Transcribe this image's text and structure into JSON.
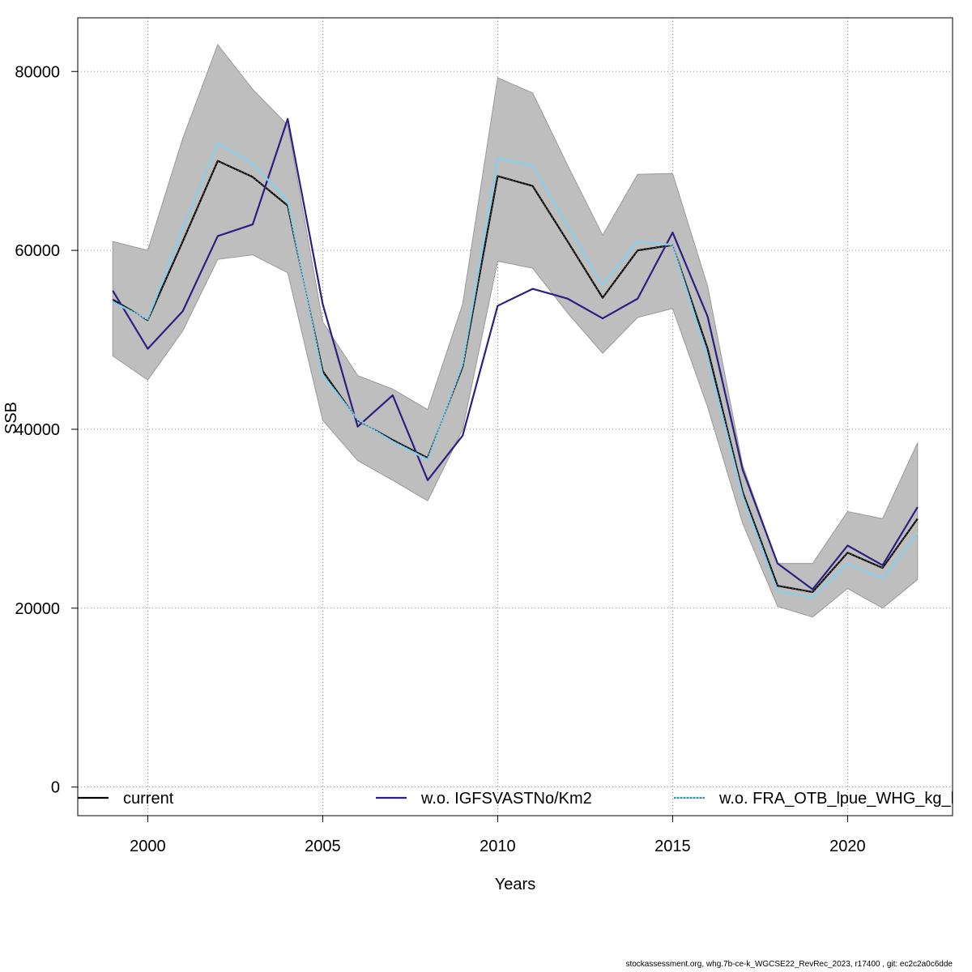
{
  "chart_data": {
    "type": "line",
    "xlabel": "Years",
    "ylabel": "SSB",
    "xlim": [
      1998,
      2023
    ],
    "ylim": [
      -3200,
      86000
    ],
    "xticks": [
      2000,
      2005,
      2010,
      2015,
      2020
    ],
    "yticks": [
      0,
      20000,
      40000,
      60000,
      80000
    ],
    "grid": true,
    "x": [
      1999,
      2000,
      2001,
      2002,
      2003,
      2004,
      2005,
      2006,
      2007,
      2008,
      2009,
      2010,
      2011,
      2012,
      2013,
      2014,
      2015,
      2016,
      2017,
      2018,
      2019,
      2020,
      2021,
      2022
    ],
    "band": {
      "name": "confidence interval",
      "color": "#bebebe",
      "upper": [
        61000,
        60000,
        72500,
        83000,
        78000,
        74000,
        52000,
        46000,
        44500,
        42200,
        54000,
        79300,
        77600,
        69500,
        61700,
        68500,
        68600,
        56000,
        36000,
        25000,
        25000,
        30800,
        30000,
        38500
      ],
      "lower": [
        48200,
        45500,
        51000,
        59000,
        59500,
        57500,
        41000,
        36500,
        34300,
        32000,
        40000,
        58800,
        58000,
        53000,
        48500,
        52500,
        53500,
        42500,
        29500,
        20200,
        19000,
        22200,
        20000,
        23200
      ]
    },
    "series": [
      {
        "name": "current",
        "color": "#000000",
        "style": "solid",
        "values": [
          54500,
          52200,
          61000,
          70000,
          68200,
          65000,
          46500,
          41000,
          38800,
          36800,
          47000,
          68300,
          67200,
          61000,
          54700,
          60000,
          60600,
          49000,
          33000,
          22500,
          21800,
          26200,
          24500,
          30000
        ]
      },
      {
        "name": "w.o. IGFSVASTNo/Km2",
        "color": "#2d1e82",
        "style": "solid",
        "values": [
          55500,
          49000,
          53200,
          61600,
          62900,
          74700,
          54000,
          40300,
          43800,
          34300,
          39300,
          53800,
          55700,
          54600,
          52400,
          54600,
          62000,
          52600,
          35500,
          25000,
          22100,
          27000,
          24800,
          31300
        ]
      },
      {
        "name": "w.o. FRA_OTB_lpue_WHG_kg_h",
        "color": "#8ccde8",
        "style": "dotted",
        "values": [
          54200,
          52300,
          62500,
          72000,
          69700,
          65500,
          46000,
          41100,
          38600,
          36600,
          47300,
          70300,
          69500,
          62700,
          56100,
          61000,
          60600,
          48000,
          32500,
          21900,
          21200,
          25000,
          23300,
          28400
        ]
      }
    ]
  },
  "footer": "stockassessment.org, whg.7b-ce-k_WGCSE22_RevRec_2023, r17400 , git: ec2c2a0c6dde"
}
